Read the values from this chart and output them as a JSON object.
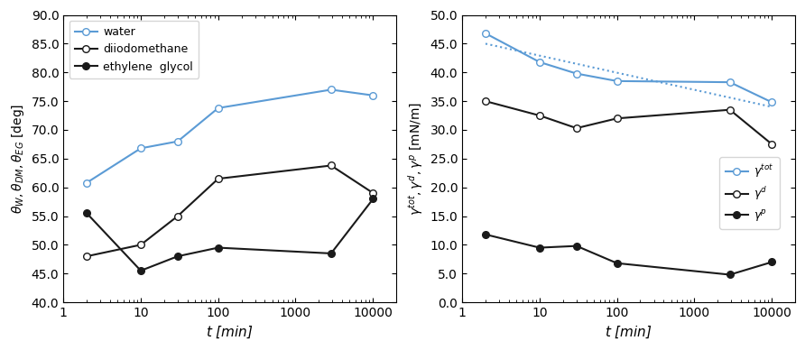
{
  "left_x": [
    2,
    10,
    30,
    100,
    2880,
    10080
  ],
  "water": [
    60.8,
    66.8,
    68.0,
    73.8,
    77.0,
    76.0
  ],
  "diiodomethane": [
    48.0,
    50.0,
    55.0,
    61.5,
    63.8,
    59.0
  ],
  "ethylene_glycol": [
    55.5,
    45.5,
    48.0,
    49.5,
    48.5,
    58.0
  ],
  "left_ylabel": "$\\theta_{W}, \\theta_{DM}, \\theta_{EG}$ [deg]",
  "left_ylim": [
    40.0,
    90.0
  ],
  "left_yticks": [
    40.0,
    45.0,
    50.0,
    55.0,
    60.0,
    65.0,
    70.0,
    75.0,
    80.0,
    85.0,
    90.0
  ],
  "right_x": [
    2,
    10,
    30,
    100,
    2880,
    10080
  ],
  "gamma_tot": [
    46.8,
    41.8,
    39.8,
    38.5,
    38.3,
    34.8
  ],
  "gamma_d": [
    35.0,
    32.5,
    30.3,
    32.0,
    33.5,
    27.5
  ],
  "gamma_p": [
    11.8,
    9.5,
    9.8,
    6.8,
    4.8,
    7.0
  ],
  "right_ylabel": "$\\gamma^{tot}, \\gamma^{d}, \\gamma^{p}$ [mN/m]",
  "right_ylim": [
    0.0,
    50.0
  ],
  "right_yticks": [
    0.0,
    5.0,
    10.0,
    15.0,
    20.0,
    25.0,
    30.0,
    35.0,
    40.0,
    45.0,
    50.0
  ],
  "xlabel": "$t$ [min]",
  "color_blue": "#5B9BD5",
  "dotted_line_x": [
    2,
    10080
  ],
  "dotted_line_y": [
    45.0,
    34.0
  ],
  "legend_left_labels": [
    "water",
    "diiodomethane",
    "ethylene  glycol"
  ],
  "legend_right_labels": [
    "$\\gamma^{tot}$",
    "$\\gamma^{d}$",
    "$\\gamma^{p}$"
  ],
  "xtick_locs": [
    1,
    10,
    100,
    1000,
    10000
  ],
  "xtick_labels": [
    "1",
    "10",
    "100",
    "1000",
    "10000"
  ]
}
